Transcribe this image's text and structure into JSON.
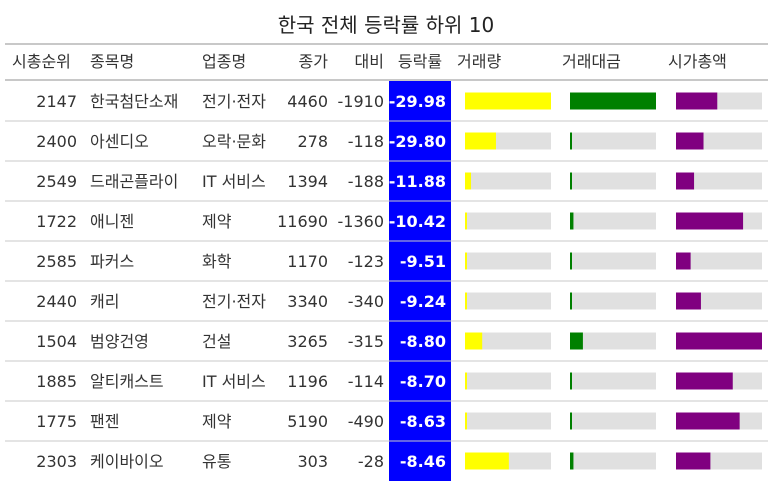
{
  "chart_data": {
    "type": "table",
    "title": "한국 전체 등락률 하위 10",
    "columns": [
      "시총순위",
      "종목명",
      "업종명",
      "종가",
      "대비",
      "등락률",
      "거래량",
      "거래대금",
      "시가총액"
    ],
    "rows": [
      {
        "rank": "2147",
        "name": "한국첨단소재",
        "sector": "전기·전자",
        "close": "4460",
        "change": "-1910",
        "rate": "-29.98",
        "volume": 1.0,
        "value": 1.0,
        "mcap": 0.48
      },
      {
        "rank": "2400",
        "name": "아센디오",
        "sector": "오락·문화",
        "close": "278",
        "change": "-118",
        "rate": "-29.80",
        "volume": 0.36,
        "value": 0.02,
        "mcap": 0.32
      },
      {
        "rank": "2549",
        "name": "드래곤플라이",
        "sector": "IT 서비스",
        "close": "1394",
        "change": "-188",
        "rate": "-11.88",
        "volume": 0.07,
        "value": 0.01,
        "mcap": 0.21
      },
      {
        "rank": "1722",
        "name": "애니젠",
        "sector": "제약",
        "close": "11690",
        "change": "-1360",
        "rate": "-10.42",
        "volume": 0.02,
        "value": 0.04,
        "mcap": 0.78
      },
      {
        "rank": "2585",
        "name": "파커스",
        "sector": "화학",
        "close": "1170",
        "change": "-123",
        "rate": "-9.51",
        "volume": 0.01,
        "value": 0.01,
        "mcap": 0.17
      },
      {
        "rank": "2440",
        "name": "캐리",
        "sector": "전기·전자",
        "close": "3340",
        "change": "-340",
        "rate": "-9.24",
        "volume": 0.01,
        "value": 0.01,
        "mcap": 0.29
      },
      {
        "rank": "1504",
        "name": "범양건영",
        "sector": "건설",
        "close": "3265",
        "change": "-315",
        "rate": "-8.80",
        "volume": 0.2,
        "value": 0.15,
        "mcap": 1.0
      },
      {
        "rank": "1885",
        "name": "알티캐스트",
        "sector": "IT 서비스",
        "close": "1196",
        "change": "-114",
        "rate": "-8.70",
        "volume": 0.01,
        "value": 0.01,
        "mcap": 0.66
      },
      {
        "rank": "1775",
        "name": "팬젠",
        "sector": "제약",
        "close": "5190",
        "change": "-490",
        "rate": "-8.63",
        "volume": 0.01,
        "value": 0.01,
        "mcap": 0.74
      },
      {
        "rank": "2303",
        "name": "케이바이오",
        "sector": "유통",
        "close": "303",
        "change": "-28",
        "rate": "-8.46",
        "volume": 0.51,
        "value": 0.04,
        "mcap": 0.4
      }
    ],
    "colors": {
      "rate_bg": "#0000ff",
      "volume_bar": "#ffff00",
      "value_bar": "#008000",
      "mcap_bar": "#800080",
      "bar_track": "#e0e0e0",
      "rule": "#c8c8c8"
    }
  }
}
